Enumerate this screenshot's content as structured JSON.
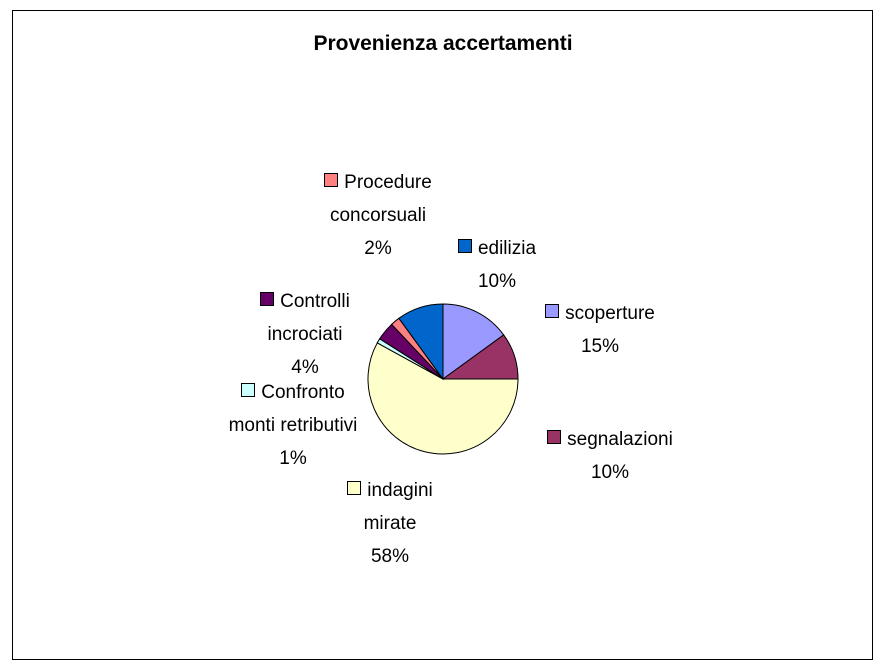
{
  "chart_data": {
    "type": "pie",
    "title": "Provenienza accertamenti",
    "categories": [
      "scoperture",
      "segnalazioni",
      "indagini mirate",
      "Confronto monti retributivi",
      "Controlli incrociati",
      "Procedure concorsuali",
      "edilizia"
    ],
    "values": [
      15,
      10,
      58,
      1,
      4,
      2,
      10
    ],
    "value_labels": [
      "15%",
      "10%",
      "58%",
      "1%",
      "4%",
      "2%",
      "10%"
    ],
    "colors": [
      "#9999FF",
      "#993366",
      "#FFFFCC",
      "#CCFFFF",
      "#660066",
      "#FF8080",
      "#0066CC"
    ]
  }
}
